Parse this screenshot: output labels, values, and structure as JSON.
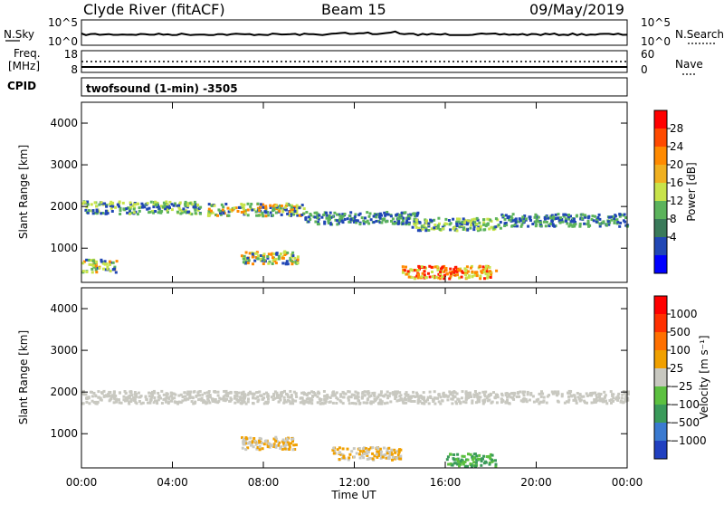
{
  "header": {
    "station": "Clyde River (fitACF)",
    "beam": "Beam 15",
    "date": "09/May/2019"
  },
  "nsky_panel": {
    "left_label": "N.Sky",
    "left_ticks": [
      "10^5",
      "10^0"
    ],
    "right_label": "N.Search",
    "right_ticks": [
      "10^5",
      "10^0"
    ]
  },
  "freq_panel": {
    "left_label_1": "Freq.",
    "left_label_2": "[MHz]",
    "left_ticks": [
      "18",
      "8"
    ],
    "cpid_label": "CPID",
    "right_label": "Nave",
    "right_ticks": [
      "60",
      "0"
    ]
  },
  "cpid_text": "twofsound (1-min) -3505",
  "chart_data": [
    {
      "type": "heatmap",
      "panel": "power",
      "ylabel": "Slant Range [km]",
      "yticks": [
        "4000",
        "3000",
        "2000",
        "1000"
      ],
      "ylim": [
        180,
        4500
      ],
      "colorbar_label": "Power [dB]",
      "colorbar_ticks": [
        "28",
        "24",
        "20",
        "16",
        "12",
        "8",
        "4"
      ],
      "colorbar_colors": [
        "#0000ff",
        "#2147b5",
        "#3a7a5a",
        "#5cb35c",
        "#c8e34a",
        "#f0b020",
        "#ff8a00",
        "#ff4a00",
        "#ff0000"
      ],
      "features": [
        {
          "t_start": 0.0,
          "t_end": 5.2,
          "range_km": 2000,
          "level": "green"
        },
        {
          "t_start": 5.5,
          "t_end": 9.8,
          "range_km": 1950,
          "level": "orange"
        },
        {
          "t_start": 9.8,
          "t_end": 14.8,
          "range_km": 1750,
          "level": "blue"
        },
        {
          "t_start": 14.5,
          "t_end": 18.4,
          "range_km": 1600,
          "level": "green"
        },
        {
          "t_start": 18.4,
          "t_end": 24.0,
          "range_km": 1700,
          "level": "blue"
        },
        {
          "t_start": 7.0,
          "t_end": 9.5,
          "range_km": 800,
          "level": "orange"
        },
        {
          "t_start": 14.0,
          "t_end": 18.2,
          "range_km": 450,
          "level": "red"
        },
        {
          "t_start": 0.0,
          "t_end": 1.5,
          "range_km": 600,
          "level": "orange"
        }
      ]
    },
    {
      "type": "heatmap",
      "panel": "velocity",
      "ylabel": "Slant Range [km]",
      "yticks": [
        "4000",
        "3000",
        "2000",
        "1000"
      ],
      "ylim": [
        180,
        4500
      ],
      "colorbar_label": "Velocity [m s⁻¹]",
      "colorbar_ticks": [
        "1000",
        "500",
        "100",
        "25",
        "−25",
        "−100",
        "−500",
        "−1000"
      ],
      "colorbar_colors": [
        "#2040c0",
        "#3a7ad0",
        "#3a9a5a",
        "#5cc040",
        "#c8c8c0",
        "#f0a000",
        "#ff7000",
        "#ff3000",
        "#ff0000"
      ],
      "features": [
        {
          "t_start": 0.0,
          "t_end": 24.0,
          "range_km": 1900,
          "level": "grey"
        },
        {
          "t_start": 7.0,
          "t_end": 9.5,
          "range_km": 800,
          "level": "orange"
        },
        {
          "t_start": 11.0,
          "t_end": 14.0,
          "range_km": 550,
          "level": "orange"
        },
        {
          "t_start": 16.0,
          "t_end": 18.2,
          "range_km": 400,
          "level": "green"
        }
      ]
    }
  ],
  "xaxis": {
    "ticks": [
      "00:00",
      "04:00",
      "08:00",
      "12:00",
      "16:00",
      "20:00",
      "00:00"
    ],
    "label": "Time UT",
    "xlim_hours": [
      0,
      24
    ]
  }
}
